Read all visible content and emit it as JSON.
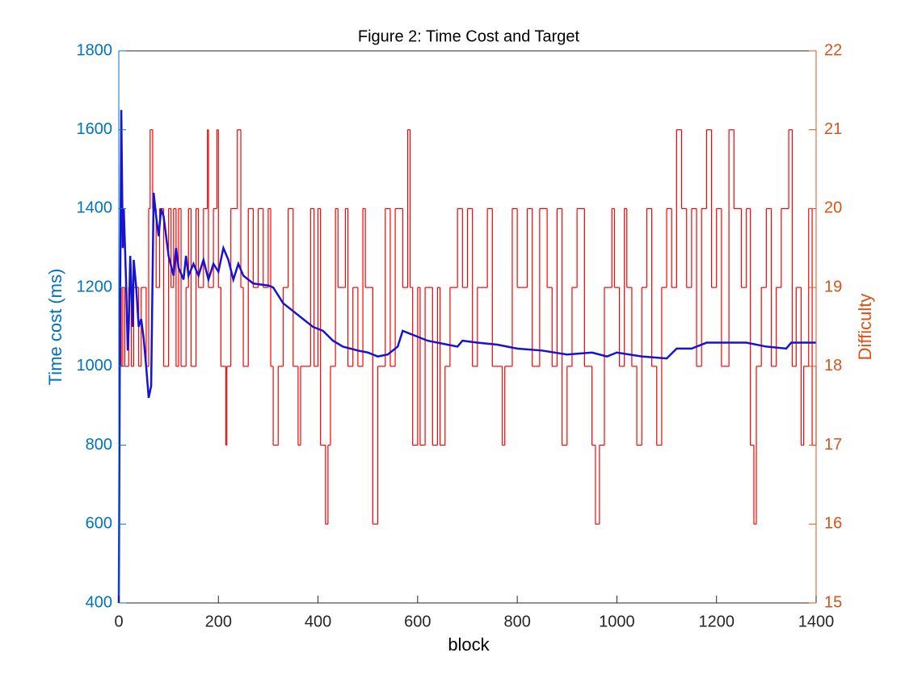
{
  "chart_data": {
    "type": "line",
    "title": "Figure 2: Time Cost and Target",
    "x_label": "block",
    "y_label": "Time cost (ms)",
    "y2_label": "Difficulty",
    "y_label_color": "#0072bd",
    "y2_label_color": "#d95319",
    "xlim": [
      0,
      1400
    ],
    "xticks": [
      0,
      200,
      400,
      600,
      800,
      1000,
      1200,
      1400
    ],
    "ylim": [
      400,
      1800
    ],
    "yticks": [
      400,
      600,
      800,
      1000,
      1200,
      1400,
      1600,
      1800
    ],
    "y2lim": [
      15,
      22
    ],
    "y2ticks": [
      15,
      16,
      17,
      18,
      19,
      20,
      21,
      22
    ],
    "series": [
      {
        "name": "Difficulty",
        "axis": "y2",
        "color": "#ff0000",
        "step": true,
        "x": [
          0,
          5,
          8,
          12,
          20,
          25,
          30,
          40,
          45,
          55,
          60,
          63,
          68,
          75,
          82,
          90,
          100,
          105,
          110,
          115,
          120,
          125,
          135,
          140,
          145,
          155,
          160,
          170,
          178,
          180,
          190,
          197,
          200,
          205,
          215,
          217,
          225,
          238,
          245,
          250,
          260,
          270,
          280,
          290,
          300,
          305,
          310,
          320,
          330,
          340,
          350,
          360,
          365,
          385,
          392,
          400,
          405,
          415,
          420,
          425,
          435,
          440,
          455,
          460,
          470,
          480,
          490,
          495,
          510,
          520,
          535,
          545,
          555,
          570,
          580,
          585,
          590,
          600,
          605,
          615,
          630,
          640,
          645,
          655,
          665,
          680,
          690,
          700,
          710,
          720,
          740,
          750,
          770,
          775,
          790,
          800,
          820,
          830,
          845,
          860,
          870,
          880,
          890,
          900,
          910,
          920,
          935,
          950,
          957,
          965,
          975,
          990,
          995,
          1005,
          1015,
          1020,
          1030,
          1040,
          1050,
          1060,
          1070,
          1080,
          1090,
          1100,
          1110,
          1120,
          1130,
          1140,
          1150,
          1160,
          1170,
          1180,
          1190,
          1200,
          1210,
          1225,
          1235,
          1250,
          1260,
          1268,
          1275,
          1280,
          1290,
          1300,
          1310,
          1320,
          1330,
          1345,
          1352,
          1360,
          1370,
          1375,
          1385,
          1392,
          1400
        ],
        "values": [
          19,
          18,
          19,
          18,
          19,
          18,
          19,
          18,
          19,
          18,
          20,
          21,
          20,
          19,
          20,
          18,
          20,
          19,
          20,
          18,
          20,
          18,
          19,
          20,
          18,
          20,
          19,
          20,
          21,
          19,
          20,
          21,
          19,
          18,
          17,
          18,
          20,
          21,
          19,
          18,
          20,
          19,
          20,
          19,
          20,
          18,
          17,
          18,
          19,
          20,
          18,
          17,
          18,
          20,
          18,
          20,
          17,
          16,
          17,
          18,
          20,
          19,
          20,
          18,
          19,
          18,
          20,
          19,
          16,
          18,
          20,
          18,
          20,
          19,
          21,
          19,
          17,
          19,
          17,
          19,
          17,
          19,
          17,
          18,
          19,
          20,
          19,
          20,
          18,
          19,
          20,
          18,
          17,
          18,
          20,
          19,
          20,
          18,
          20,
          19,
          18,
          20,
          17,
          18,
          19,
          20,
          18,
          17,
          16,
          17,
          19,
          20,
          19,
          18,
          20,
          19,
          18,
          17,
          19,
          20,
          18,
          17,
          19,
          20,
          19,
          21,
          20,
          19,
          20,
          18,
          20,
          21,
          19,
          20,
          18,
          21,
          20,
          19,
          20,
          17,
          16,
          18,
          19,
          20,
          18,
          19,
          20,
          21,
          18,
          19,
          17,
          18,
          20,
          17,
          18
        ]
      },
      {
        "name": "Time cost",
        "axis": "y",
        "color": "#1414d2",
        "step": false,
        "x": [
          0,
          2,
          5,
          8,
          10,
          15,
          18,
          20,
          23,
          28,
          30,
          35,
          40,
          45,
          50,
          55,
          60,
          65,
          70,
          75,
          80,
          85,
          90,
          100,
          110,
          115,
          120,
          130,
          135,
          140,
          150,
          160,
          170,
          180,
          190,
          200,
          210,
          220,
          230,
          240,
          250,
          270,
          300,
          310,
          330,
          350,
          370,
          390,
          410,
          430,
          450,
          480,
          500,
          520,
          540,
          560,
          570,
          590,
          620,
          660,
          680,
          690,
          720,
          760,
          800,
          850,
          900,
          950,
          980,
          1000,
          1050,
          1100,
          1120,
          1150,
          1180,
          1200,
          1260,
          1300,
          1340,
          1350,
          1400
        ],
        "values": [
          400,
          1000,
          1650,
          1300,
          1400,
          1200,
          1040,
          1100,
          1280,
          1100,
          1270,
          1200,
          1100,
          1120,
          1070,
          1000,
          920,
          950,
          1440,
          1380,
          1330,
          1400,
          1380,
          1280,
          1230,
          1300,
          1250,
          1220,
          1280,
          1230,
          1260,
          1230,
          1270,
          1220,
          1260,
          1240,
          1300,
          1270,
          1220,
          1260,
          1230,
          1210,
          1205,
          1200,
          1160,
          1140,
          1120,
          1100,
          1090,
          1065,
          1050,
          1040,
          1035,
          1025,
          1030,
          1050,
          1090,
          1080,
          1065,
          1055,
          1050,
          1065,
          1060,
          1055,
          1045,
          1040,
          1030,
          1035,
          1025,
          1035,
          1025,
          1020,
          1045,
          1045,
          1060,
          1060,
          1060,
          1050,
          1045,
          1060,
          1060
        ]
      }
    ]
  }
}
